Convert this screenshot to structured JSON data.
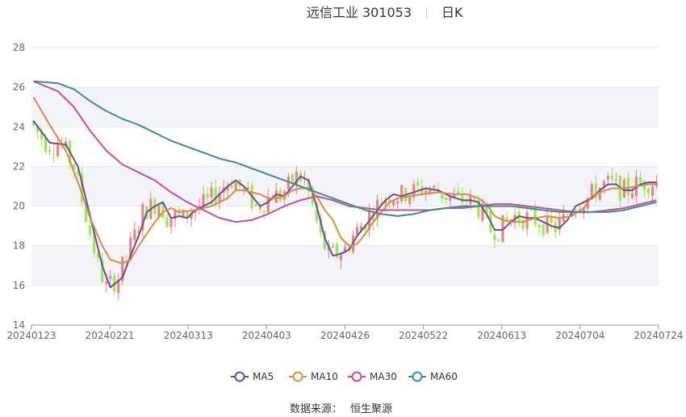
{
  "chart_data": {
    "type": "candlestick",
    "title_name": "远信工业 301053",
    "title_period": "日K",
    "source_label": "数据来源：",
    "source_value": "恒生聚源",
    "ylim": [
      14,
      28
    ],
    "y_ticks": [
      14,
      16,
      18,
      20,
      22,
      24,
      26,
      28
    ],
    "x_tick_labels": [
      "20240123",
      "20240221",
      "20240313",
      "20240403",
      "20240426",
      "20240522",
      "20240613",
      "20240704",
      "20240724"
    ],
    "grid": "horizontal bands",
    "legend_position": "bottom-center",
    "colors": {
      "up": "#f08080",
      "down": "#90ee44",
      "band": "#f3f4fa"
    },
    "series": [
      {
        "name": "MA5",
        "color": "#6a4c9c",
        "points": [
          [
            0,
            24.3
          ],
          [
            4,
            23.2
          ],
          [
            8,
            23.1
          ],
          [
            11,
            22.0
          ],
          [
            14,
            19.5
          ],
          [
            17,
            17.0
          ],
          [
            19,
            15.9
          ],
          [
            22,
            16.4
          ],
          [
            24,
            17.5
          ],
          [
            26,
            18.5
          ],
          [
            28,
            19.7
          ],
          [
            30,
            20.0
          ],
          [
            32,
            20.2
          ],
          [
            34,
            19.4
          ],
          [
            36,
            19.5
          ],
          [
            38,
            19.4
          ],
          [
            40,
            19.8
          ],
          [
            44,
            20.2
          ],
          [
            48,
            21.0
          ],
          [
            50,
            21.3
          ],
          [
            52,
            21.0
          ],
          [
            54,
            20.5
          ],
          [
            56,
            20.0
          ],
          [
            58,
            20.2
          ],
          [
            60,
            20.6
          ],
          [
            62,
            20.5
          ],
          [
            64,
            21.0
          ],
          [
            66,
            21.5
          ],
          [
            68,
            21.3
          ],
          [
            70,
            20.0
          ],
          [
            72,
            18.4
          ],
          [
            74,
            17.5
          ],
          [
            76,
            17.6
          ],
          [
            78,
            17.8
          ],
          [
            80,
            18.5
          ],
          [
            82,
            19.0
          ],
          [
            85,
            19.8
          ],
          [
            87,
            20.3
          ],
          [
            89,
            20.6
          ],
          [
            91,
            20.5
          ],
          [
            94,
            20.7
          ],
          [
            97,
            20.9
          ],
          [
            100,
            20.8
          ],
          [
            103,
            20.5
          ],
          [
            106,
            20.3
          ],
          [
            108,
            20.3
          ],
          [
            110,
            20.2
          ],
          [
            112,
            19.6
          ],
          [
            114,
            18.8
          ],
          [
            116,
            18.8
          ],
          [
            118,
            19.2
          ],
          [
            120,
            19.5
          ],
          [
            122,
            19.4
          ],
          [
            124,
            19.4
          ],
          [
            126,
            19.2
          ],
          [
            128,
            19.0
          ],
          [
            130,
            18.9
          ],
          [
            132,
            19.3
          ],
          [
            134,
            20.0
          ],
          [
            136,
            20.2
          ],
          [
            138,
            20.4
          ],
          [
            140,
            20.8
          ],
          [
            142,
            21.1
          ],
          [
            144,
            21.1
          ],
          [
            146,
            20.8
          ],
          [
            148,
            20.8
          ],
          [
            150,
            21.1
          ],
          [
            152,
            21.2
          ],
          [
            154,
            21.2
          ]
        ]
      },
      {
        "name": "MA10",
        "color": "#e08a3c",
        "points": [
          [
            0,
            25.5
          ],
          [
            4,
            24.1
          ],
          [
            8,
            22.8
          ],
          [
            11,
            21.2
          ],
          [
            14,
            19.4
          ],
          [
            17,
            18.0
          ],
          [
            19,
            17.3
          ],
          [
            22,
            17.1
          ],
          [
            24,
            17.3
          ],
          [
            26,
            18.0
          ],
          [
            28,
            18.6
          ],
          [
            30,
            19.2
          ],
          [
            32,
            19.7
          ],
          [
            34,
            19.9
          ],
          [
            36,
            19.7
          ],
          [
            40,
            19.8
          ],
          [
            44,
            20.0
          ],
          [
            48,
            20.4
          ],
          [
            50,
            20.8
          ],
          [
            52,
            20.8
          ],
          [
            54,
            20.7
          ],
          [
            56,
            20.6
          ],
          [
            58,
            20.4
          ],
          [
            60,
            20.4
          ],
          [
            62,
            20.5
          ],
          [
            64,
            20.8
          ],
          [
            66,
            20.9
          ],
          [
            68,
            20.9
          ],
          [
            70,
            20.5
          ],
          [
            72,
            19.8
          ],
          [
            74,
            19.3
          ],
          [
            76,
            18.4
          ],
          [
            78,
            18.0
          ],
          [
            80,
            18.1
          ],
          [
            82,
            18.6
          ],
          [
            84,
            19.2
          ],
          [
            86,
            19.7
          ],
          [
            88,
            20.2
          ],
          [
            90,
            20.4
          ],
          [
            93,
            20.5
          ],
          [
            96,
            20.6
          ],
          [
            100,
            20.7
          ],
          [
            104,
            20.6
          ],
          [
            107,
            20.6
          ],
          [
            110,
            20.4
          ],
          [
            112,
            20.1
          ],
          [
            114,
            19.5
          ],
          [
            116,
            19.3
          ],
          [
            118,
            19.2
          ],
          [
            121,
            19.2
          ],
          [
            124,
            19.4
          ],
          [
            127,
            19.5
          ],
          [
            130,
            19.4
          ],
          [
            133,
            19.5
          ],
          [
            136,
            19.9
          ],
          [
            138,
            20.5
          ],
          [
            140,
            20.7
          ],
          [
            143,
            20.9
          ],
          [
            146,
            20.9
          ],
          [
            149,
            21.0
          ],
          [
            152,
            21.1
          ],
          [
            154,
            21.1
          ]
        ]
      },
      {
        "name": "MA30",
        "color": "#d04a94",
        "points": [
          [
            0,
            26.3
          ],
          [
            6,
            25.8
          ],
          [
            10,
            25.0
          ],
          [
            14,
            23.8
          ],
          [
            18,
            22.8
          ],
          [
            22,
            22.1
          ],
          [
            26,
            21.7
          ],
          [
            30,
            21.3
          ],
          [
            34,
            20.7
          ],
          [
            38,
            20.2
          ],
          [
            42,
            19.8
          ],
          [
            46,
            19.4
          ],
          [
            50,
            19.2
          ],
          [
            54,
            19.3
          ],
          [
            58,
            19.6
          ],
          [
            62,
            20.0
          ],
          [
            66,
            20.3
          ],
          [
            70,
            20.5
          ],
          [
            74,
            20.3
          ],
          [
            78,
            20.0
          ],
          [
            82,
            19.9
          ],
          [
            86,
            19.8
          ],
          [
            90,
            19.8
          ],
          [
            94,
            19.8
          ],
          [
            98,
            19.8
          ],
          [
            102,
            19.9
          ],
          [
            106,
            19.9
          ],
          [
            110,
            20.0
          ],
          [
            114,
            20.1
          ],
          [
            118,
            20.1
          ],
          [
            122,
            20.0
          ],
          [
            126,
            19.9
          ],
          [
            130,
            19.8
          ],
          [
            134,
            19.7
          ],
          [
            138,
            19.7
          ],
          [
            142,
            19.8
          ],
          [
            146,
            19.9
          ],
          [
            150,
            20.1
          ],
          [
            154,
            20.3
          ]
        ]
      },
      {
        "name": "MA60",
        "color": "#3b8e8e",
        "points": [
          [
            0,
            26.3
          ],
          [
            6,
            26.2
          ],
          [
            10,
            25.9
          ],
          [
            14,
            25.3
          ],
          [
            18,
            24.8
          ],
          [
            22,
            24.4
          ],
          [
            26,
            24.1
          ],
          [
            30,
            23.7
          ],
          [
            34,
            23.3
          ],
          [
            38,
            23.0
          ],
          [
            42,
            22.7
          ],
          [
            46,
            22.4
          ],
          [
            50,
            22.2
          ],
          [
            54,
            21.9
          ],
          [
            58,
            21.6
          ],
          [
            62,
            21.3
          ],
          [
            66,
            21.0
          ],
          [
            70,
            20.7
          ],
          [
            74,
            20.4
          ],
          [
            78,
            20.1
          ],
          [
            82,
            19.8
          ],
          [
            86,
            19.6
          ],
          [
            90,
            19.5
          ],
          [
            94,
            19.6
          ],
          [
            98,
            19.8
          ],
          [
            102,
            19.9
          ],
          [
            106,
            20.0
          ],
          [
            110,
            20.0
          ],
          [
            114,
            20.0
          ],
          [
            118,
            20.0
          ],
          [
            122,
            19.9
          ],
          [
            126,
            19.8
          ],
          [
            130,
            19.7
          ],
          [
            134,
            19.7
          ],
          [
            138,
            19.7
          ],
          [
            142,
            19.7
          ],
          [
            146,
            19.8
          ],
          [
            150,
            20.0
          ],
          [
            154,
            20.2
          ]
        ]
      }
    ]
  }
}
